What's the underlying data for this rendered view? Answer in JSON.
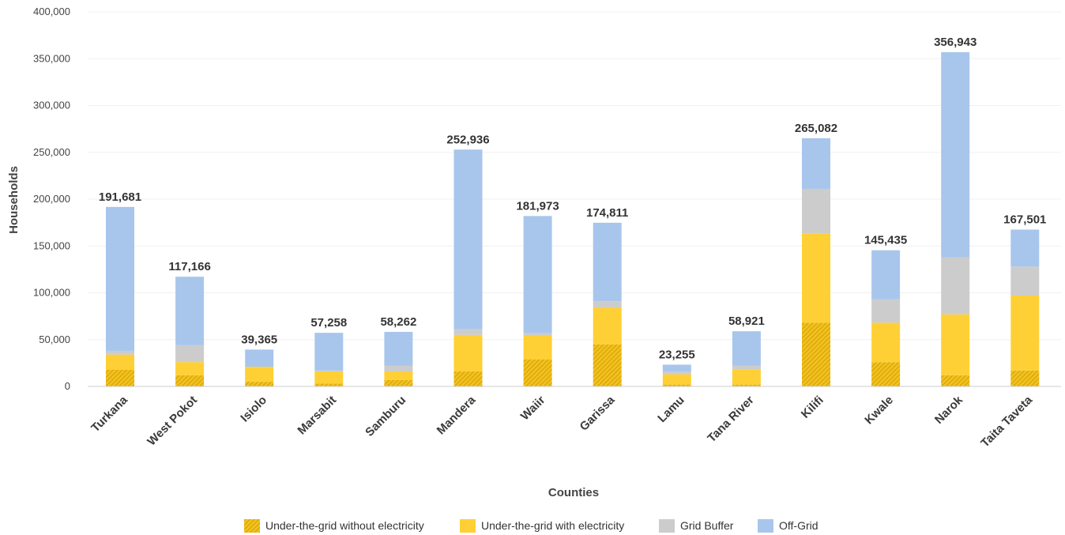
{
  "chart_data": {
    "type": "bar",
    "stacked": true,
    "title": "",
    "xlabel": "Counties",
    "ylabel": "Households",
    "ylim": [
      0,
      400000
    ],
    "yticks": [
      0,
      50000,
      100000,
      150000,
      200000,
      250000,
      300000,
      350000,
      400000
    ],
    "ytick_labels": [
      "0",
      "50,000",
      "100,000",
      "150,000",
      "200,000",
      "250,000",
      "300,000",
      "350,000",
      "400,000"
    ],
    "grid": true,
    "legend_position": "bottom",
    "categories": [
      "Turkana",
      "West Pokot",
      "Isiolo",
      "Marsabit",
      "Samburu",
      "Mandera",
      "Waiir",
      "Garissa",
      "Lamu",
      "Tana River",
      "Kilifi",
      "Kwale",
      "Narok",
      "Taita Taveta"
    ],
    "totals": [
      191681,
      117166,
      39365,
      57258,
      58262,
      252936,
      181973,
      174811,
      23255,
      58921,
      265082,
      145435,
      356943,
      167501
    ],
    "total_labels": [
      "191,681",
      "117,166",
      "39,365",
      "57,258",
      "58,262",
      "252,936",
      "181,973",
      "174,811",
      "23,255",
      "58,921",
      "265,082",
      "145,435",
      "356,943",
      "167,501"
    ],
    "series": [
      {
        "name": "Under-the-grid without electricity",
        "color": "#e8b818",
        "pattern": "hatched",
        "values": [
          18000,
          12000,
          5000,
          3000,
          7000,
          16000,
          29000,
          45000,
          2000,
          2000,
          68000,
          26000,
          12000,
          17000
        ]
      },
      {
        "name": "Under-the-grid with electricity",
        "color": "#ffd035",
        "values": [
          16000,
          14000,
          16000,
          13000,
          9000,
          39000,
          25000,
          39000,
          11000,
          16000,
          95000,
          42000,
          65000,
          80000
        ]
      },
      {
        "name": "Grid Buffer",
        "color": "#cccccc",
        "values": [
          4000,
          18000,
          0,
          1000,
          6000,
          6000,
          3000,
          7000,
          3000,
          4000,
          48000,
          25000,
          61000,
          31000
        ]
      },
      {
        "name": "Off-Grid",
        "color": "#a8c6ec",
        "values": [
          153681,
          73166,
          18365,
          40258,
          36262,
          191936,
          124973,
          83811,
          7255,
          36921,
          54082,
          52435,
          218943,
          39501
        ]
      }
    ]
  }
}
